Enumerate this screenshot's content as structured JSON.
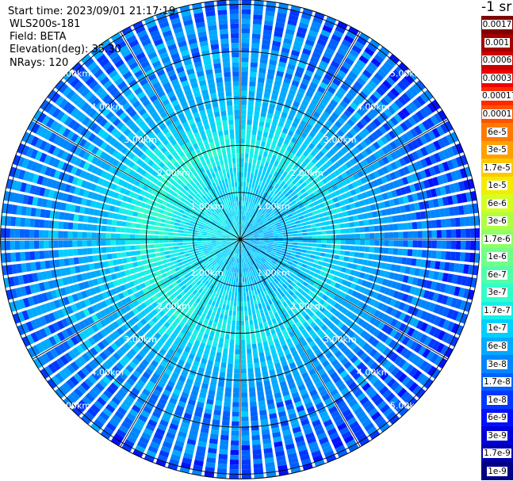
{
  "header": {
    "start_time": "Start time: 2023/09/01 21:17:19",
    "instrument": "WLS200s-181",
    "field": "Field: BETA",
    "elevation": "Elevation(deg): 35.30",
    "nrays": "NRays: 120"
  },
  "colorbar": {
    "title": "-1 sr",
    "labels": [
      "0.0017",
      "0.001",
      "0.0006",
      "0.0003",
      "0.00017",
      "0.0001",
      "6e-5",
      "3e-5",
      "1.7e-5",
      "1e-5",
      "6e-6",
      "3e-6",
      "1.7e-6",
      "1e-6",
      "6e-7",
      "3e-7",
      "1.7e-7",
      "1e-7",
      "6e-8",
      "3e-8",
      "1.7e-8",
      "1e-8",
      "6e-9",
      "3e-9",
      "1.7e-9",
      "1e-9"
    ],
    "colors": [
      "#7f0000",
      "#a40000",
      "#cc0000",
      "#f00000",
      "#ff2a00",
      "#ff5200",
      "#ff7a00",
      "#ffa000",
      "#ffc800",
      "#f4ec00",
      "#d4ff20",
      "#b0ff44",
      "#90ff66",
      "#70ff88",
      "#50ffa8",
      "#30ffc8",
      "#14f0e8",
      "#00d0ff",
      "#00aaff",
      "#0086ff",
      "#0060ff",
      "#0038ff",
      "#0010ff",
      "#0000da",
      "#0000b0",
      "#000085"
    ]
  },
  "chart_data": {
    "type": "heatmap",
    "projection": "polar PPI scan",
    "field": "BETA",
    "units": "-1 sr",
    "nrays": 120,
    "elevation_deg": 35.3,
    "range_rings_km": [
      1.0,
      2.0,
      3.0,
      4.0,
      5.0
    ],
    "ring_labels": [
      "1.00km",
      "2.00km",
      "3.00km",
      "4.00km",
      "5.00km"
    ],
    "max_range_km": 5.1,
    "azimuth_spokes_deg": [
      0,
      30,
      60,
      90,
      120,
      150,
      180,
      210,
      240,
      270,
      300,
      330
    ],
    "approx_beta_by_range_km": [
      {
        "range_km": 1.0,
        "beta": 1e-07
      },
      {
        "range_km": 2.0,
        "beta": 1.7e-07
      },
      {
        "range_km": 3.0,
        "beta": 6e-08
      },
      {
        "range_km": 4.0,
        "beta": 3e-08
      },
      {
        "range_km": 5.0,
        "beta": 1.7e-08
      }
    ]
  }
}
